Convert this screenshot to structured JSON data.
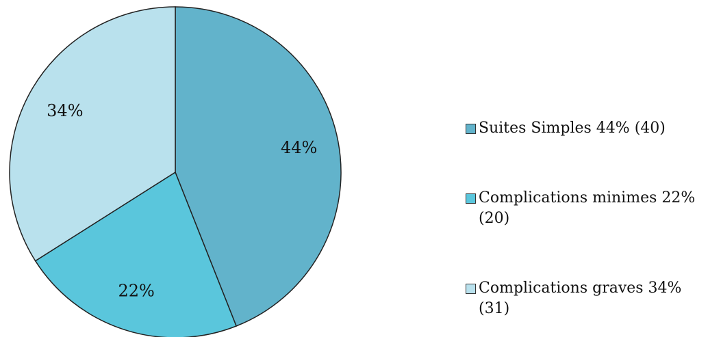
{
  "chart_data": {
    "type": "pie",
    "categories": [
      "Suites Simples 44% (40)",
      "Complications minimes 22% (20)",
      "Complications graves 34% (31)"
    ],
    "values": [
      44,
      22,
      34
    ],
    "value_labels": [
      "44%",
      "22%",
      "34%"
    ],
    "colors": [
      "#62b3cb",
      "#5ac6dc",
      "#b9e1ed"
    ],
    "legend": "right"
  }
}
